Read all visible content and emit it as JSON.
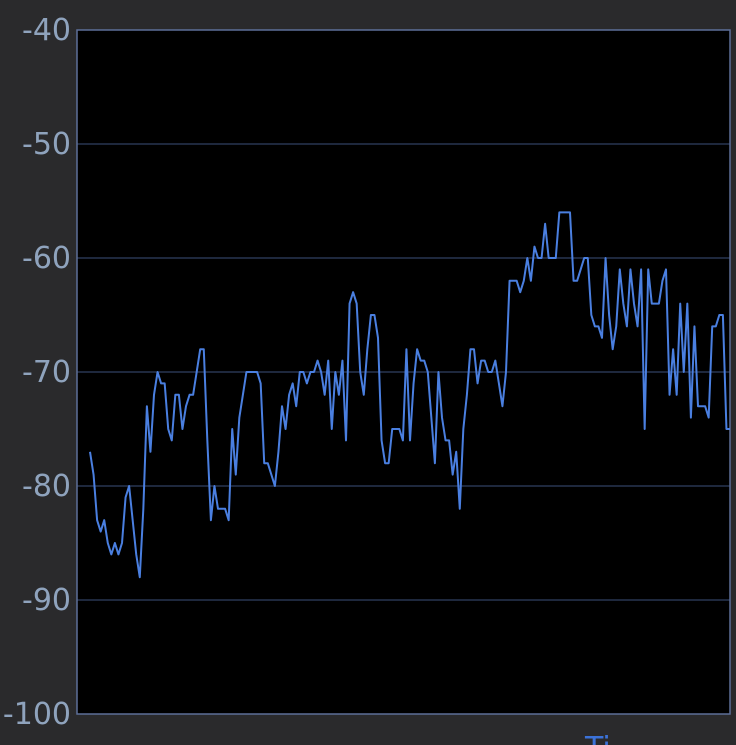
{
  "colors": {
    "background": "#2a2a2c",
    "plot_background": "#000000",
    "grid": "#3d4f7a",
    "axis": "#5d6f99",
    "tick_text": "#8fa3bd",
    "series": "#4a7fe0"
  },
  "chart_data": {
    "type": "line",
    "title": "",
    "xlabel": "Ti",
    "ylabel": "",
    "ylim": [
      -100,
      -40
    ],
    "yticks": [
      -40,
      -50,
      -60,
      -70,
      -80,
      -90,
      -100
    ],
    "ytick_labels": [
      "-40",
      "-50",
      "-60",
      "-70",
      "-80",
      "-90",
      "-100"
    ],
    "grid": true,
    "series": [
      {
        "values": [
          -77,
          -79,
          -83,
          -84,
          -83,
          -85,
          -86,
          -85,
          -86,
          -85,
          -81,
          -80,
          -83,
          -86,
          -88,
          -82,
          -73,
          -77,
          -72,
          -70,
          -71,
          -71,
          -75,
          -76,
          -72,
          -72,
          -75,
          -73,
          -72,
          -72,
          -70,
          -68,
          -68,
          -76,
          -83,
          -80,
          -82,
          -82,
          -82,
          -83,
          -75,
          -79,
          -74,
          -72,
          -70,
          -70,
          -70,
          -70,
          -71,
          -78,
          -78,
          -79,
          -80,
          -77,
          -73,
          -75,
          -72,
          -71,
          -73,
          -70,
          -70,
          -71,
          -70,
          -70,
          -69,
          -70,
          -72,
          -69,
          -75,
          -70,
          -72,
          -69,
          -76,
          -64,
          -63,
          -64,
          -70,
          -72,
          -68,
          -65,
          -65,
          -67,
          -76,
          -78,
          -78,
          -75,
          -75,
          -75,
          -76,
          -68,
          -76,
          -71,
          -68,
          -69,
          -69,
          -70,
          -74,
          -78,
          -70,
          -74,
          -76,
          -76,
          -79,
          -77,
          -82,
          -75,
          -72,
          -68,
          -68,
          -71,
          -69,
          -69,
          -70,
          -70,
          -69,
          -71,
          -73,
          -70,
          -62,
          -62,
          -62,
          -63,
          -62,
          -60,
          -62,
          -59,
          -60,
          -60,
          -57,
          -60,
          -60,
          -60,
          -56,
          -56,
          -56,
          -56,
          -62,
          -62,
          -61,
          -60,
          -60,
          -65,
          -66,
          -66,
          -67,
          -60,
          -65,
          -68,
          -66,
          -61,
          -64,
          -66,
          -61,
          -64,
          -66,
          -61,
          -75,
          -61,
          -64,
          -64,
          -64,
          -62,
          -61,
          -72,
          -68,
          -72,
          -64,
          -70,
          -64,
          -74,
          -66,
          -73,
          -73,
          -73,
          -74,
          -66,
          -66,
          -65,
          -65,
          -75,
          -75
        ]
      }
    ]
  }
}
